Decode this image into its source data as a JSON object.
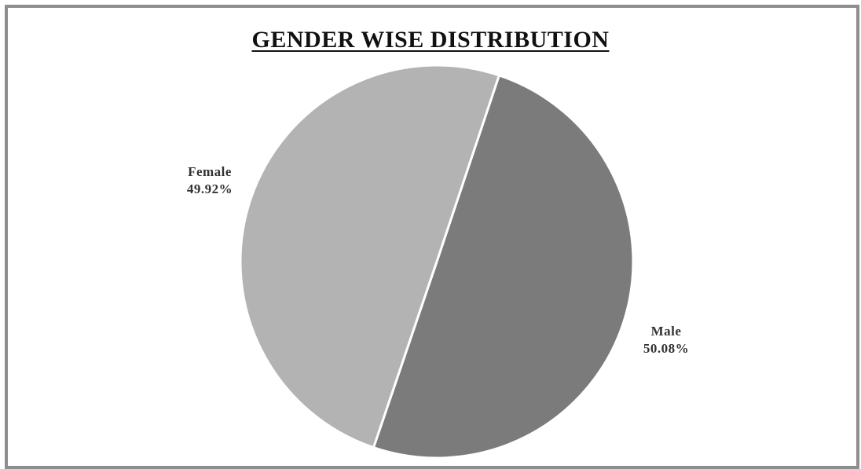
{
  "chart_data": {
    "type": "pie",
    "title": "GENDER WISE DISTRIBUTION",
    "slices": [
      {
        "label": "Male",
        "value": 50.08,
        "value_label": "50.08%",
        "color": "#7b7b7b"
      },
      {
        "label": "Female",
        "value": 49.92,
        "value_label": "49.92%",
        "color": "#b3b3b3"
      }
    ],
    "legend": "none",
    "separator_color": "#ffffff"
  }
}
